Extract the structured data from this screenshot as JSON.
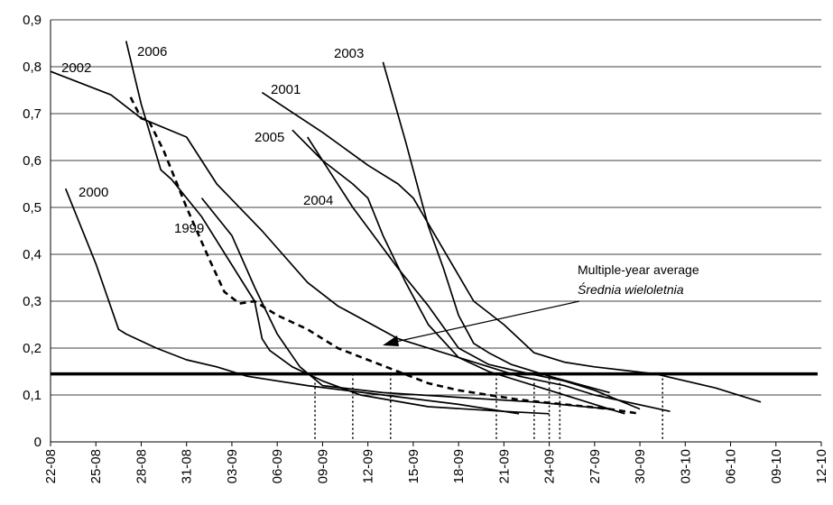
{
  "chart_data": {
    "type": "line",
    "title": "",
    "xlabel": "",
    "ylabel": "",
    "ylim": [
      0,
      0.9
    ],
    "y_ticks": [
      "0",
      "0,1",
      "0,2",
      "0,3",
      "0,4",
      "0,5",
      "0,6",
      "0,7",
      "0,8",
      "0,9"
    ],
    "x_ticks": [
      "22-08",
      "25-08",
      "28-08",
      "31-08",
      "03-09",
      "06-09",
      "09-09",
      "12-09",
      "15-09",
      "18-09",
      "21-09",
      "24-09",
      "27-09",
      "30-09",
      "03-10",
      "06-10",
      "09-10",
      "12-10"
    ],
    "x_unit": "days from 22-08",
    "grid": "horizontal",
    "threshold": 0.145,
    "threshold_crossings_days": [
      17.5,
      20,
      22.5,
      29.5,
      32,
      33,
      33.7,
      40.5
    ],
    "series": [
      {
        "name": "2000",
        "points": [
          [
            1,
            0.54
          ],
          [
            3,
            0.38
          ],
          [
            4.5,
            0.24
          ],
          [
            5,
            0.23
          ],
          [
            7,
            0.2
          ],
          [
            9,
            0.175
          ],
          [
            11,
            0.16
          ],
          [
            13,
            0.14
          ],
          [
            17,
            0.12
          ],
          [
            22,
            0.1
          ],
          [
            27,
            0.08
          ],
          [
            31,
            0.06
          ]
        ]
      },
      {
        "name": "2006",
        "points": [
          [
            5,
            0.855
          ],
          [
            6,
            0.72
          ],
          [
            7.3,
            0.58
          ],
          [
            8,
            0.56
          ],
          [
            10,
            0.48
          ],
          [
            13.5,
            0.3
          ],
          [
            14,
            0.22
          ],
          [
            14.5,
            0.195
          ],
          [
            16,
            0.16
          ],
          [
            18,
            0.13
          ],
          [
            20.5,
            0.1
          ],
          [
            25,
            0.075
          ],
          [
            30,
            0.065
          ],
          [
            33,
            0.06
          ]
        ]
      },
      {
        "name": "2002",
        "points": [
          [
            0,
            0.79
          ],
          [
            4,
            0.74
          ],
          [
            6,
            0.69
          ],
          [
            9,
            0.65
          ],
          [
            11,
            0.55
          ],
          [
            14,
            0.45
          ],
          [
            17,
            0.34
          ],
          [
            19,
            0.29
          ],
          [
            23,
            0.22
          ],
          [
            28,
            0.17
          ],
          [
            31,
            0.14
          ],
          [
            34,
            0.12
          ],
          [
            36,
            0.1
          ],
          [
            41,
            0.065
          ]
        ]
      },
      {
        "name": "1999",
        "points": [
          [
            10,
            0.52
          ],
          [
            12,
            0.44
          ],
          [
            13.5,
            0.33
          ],
          [
            15,
            0.23
          ],
          [
            16.5,
            0.16
          ],
          [
            18,
            0.12
          ],
          [
            22,
            0.105
          ],
          [
            27,
            0.095
          ],
          [
            32,
            0.085
          ],
          [
            37,
            0.07
          ]
        ]
      },
      {
        "name": "2001",
        "points": [
          [
            14,
            0.745
          ],
          [
            18,
            0.66
          ],
          [
            21,
            0.59
          ],
          [
            23,
            0.55
          ],
          [
            24,
            0.52
          ],
          [
            26,
            0.41
          ],
          [
            28,
            0.3
          ],
          [
            30,
            0.25
          ],
          [
            32,
            0.19
          ],
          [
            34,
            0.17
          ],
          [
            36,
            0.16
          ],
          [
            40,
            0.145
          ],
          [
            44,
            0.115
          ],
          [
            47,
            0.085
          ]
        ]
      },
      {
        "name": "2005",
        "points": [
          [
            16,
            0.665
          ],
          [
            18,
            0.6
          ],
          [
            20,
            0.55
          ],
          [
            21,
            0.52
          ],
          [
            22,
            0.44
          ],
          [
            23.5,
            0.34
          ],
          [
            25,
            0.25
          ],
          [
            27,
            0.18
          ],
          [
            29,
            0.15
          ],
          [
            32,
            0.12
          ],
          [
            36,
            0.08
          ],
          [
            38,
            0.06
          ]
        ]
      },
      {
        "name": "2004",
        "points": [
          [
            17,
            0.65
          ],
          [
            20,
            0.5
          ],
          [
            23,
            0.37
          ],
          [
            25,
            0.29
          ],
          [
            27,
            0.2
          ],
          [
            29,
            0.165
          ],
          [
            31,
            0.15
          ],
          [
            34,
            0.13
          ],
          [
            36,
            0.11
          ],
          [
            39,
            0.07
          ]
        ]
      },
      {
        "name": "2003",
        "points": [
          [
            22,
            0.81
          ],
          [
            23.5,
            0.64
          ],
          [
            25,
            0.46
          ],
          [
            26,
            0.37
          ],
          [
            27,
            0.27
          ],
          [
            28,
            0.21
          ],
          [
            29,
            0.19
          ],
          [
            30.5,
            0.165
          ],
          [
            33,
            0.14
          ],
          [
            37,
            0.105
          ]
        ]
      },
      {
        "name": "Multiple-year average",
        "dashed": true,
        "points": [
          [
            5.3,
            0.735
          ],
          [
            6,
            0.69
          ],
          [
            6.5,
            0.685
          ],
          [
            7.5,
            0.62
          ],
          [
            9,
            0.5
          ],
          [
            10.5,
            0.39
          ],
          [
            11.5,
            0.32
          ],
          [
            12.5,
            0.295
          ],
          [
            13.5,
            0.3
          ],
          [
            15,
            0.27
          ],
          [
            17,
            0.24
          ],
          [
            19,
            0.2
          ],
          [
            21,
            0.175
          ],
          [
            23,
            0.15
          ],
          [
            25,
            0.125
          ],
          [
            27,
            0.11
          ],
          [
            29,
            0.1
          ],
          [
            31,
            0.09
          ],
          [
            34,
            0.08
          ],
          [
            37,
            0.07
          ],
          [
            39,
            0.06
          ]
        ]
      }
    ],
    "series_labels": [
      {
        "name": "2002",
        "text": "2002"
      },
      {
        "name": "2006",
        "text": "2006"
      },
      {
        "name": "2003",
        "text": "2003"
      },
      {
        "name": "2001",
        "text": "2001"
      },
      {
        "name": "2005",
        "text": "2005"
      },
      {
        "name": "2000",
        "text": "2000"
      },
      {
        "name": "2004",
        "text": "2004"
      },
      {
        "name": "1999",
        "text": "1999"
      }
    ],
    "annotation": {
      "line1": "Multiple-year average",
      "line2": "Średnia wieloletnia"
    }
  }
}
